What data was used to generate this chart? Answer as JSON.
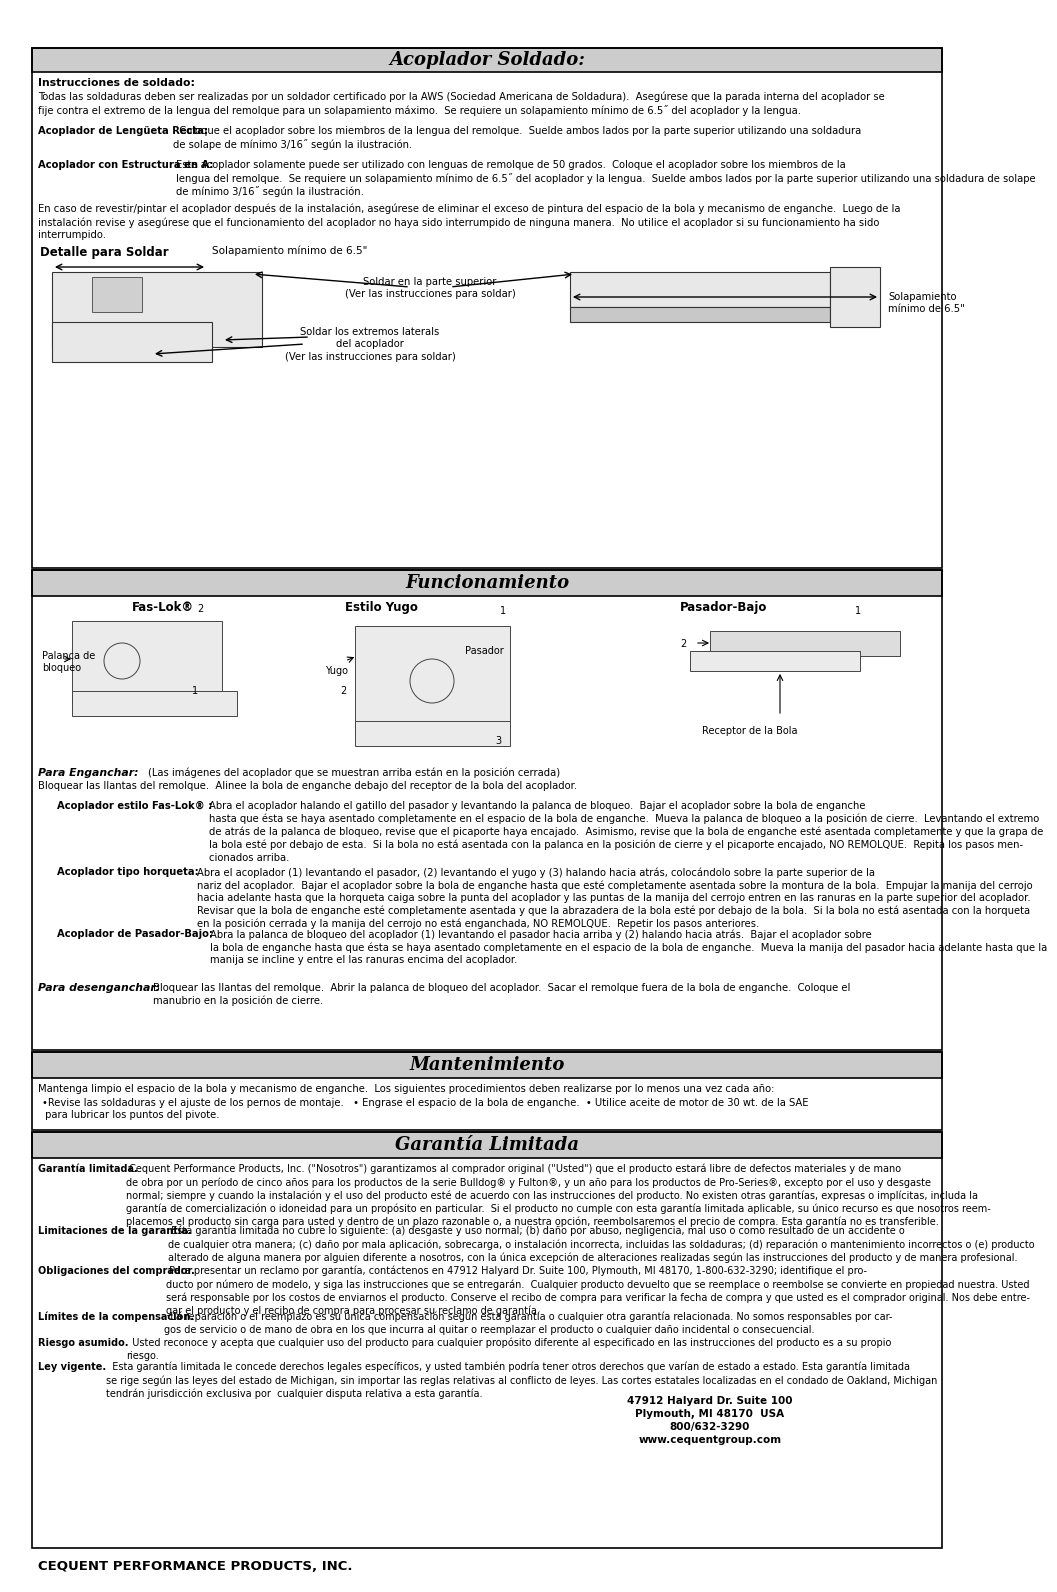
{
  "bg_color": "#ffffff",
  "header_bg": "#cccccc",
  "title1": "Acoplador Soldado:",
  "title2": "Funcionamiento",
  "title3": "Mantenimiento",
  "title4": "Garantía Limitada",
  "s1_instr_title": "Instrucciones de soldado:",
  "s1_p1": "Todas las soldaduras deben ser realizadas por un soldador certificado por la AWS (Sociedad Americana de Soldadura).  Asegúrese que la parada interna del acoplador se\nfije contra el extremo de la lengua del remolque para un solapamiento máximo.  Se requiere un solapamiento mínimo de 6.5˝ del acoplador y la lengua.",
  "s1_p2a": "Acoplador de Lengüeta Recta:",
  "s1_p2b": "  Coloque el acoplador sobre los miembros de la lengua del remolque.  Suelde ambos lados por la parte superior utilizando una soldadura\nde solape de mínimo 3/16˝ según la ilustración.",
  "s1_p3a": "Acoplador con Estructura en A:",
  "s1_p3b": "Este acoplador solamente puede ser utilizado con lenguas de remolque de 50 grados.  Coloque el acoplador sobre los miembros de la\nlengua del remolque.  Se requiere un solapamiento mínimo de 6.5˝ del acoplador y la lengua.  Suelde ambos lados por la parte superior utilizando una soldadura de solape\nde mínimo 3/16˝ según la ilustración.",
  "s1_p4": "En caso de revestir/pintar el acoplador después de la instalación, asegúrese de eliminar el exceso de pintura del espacio de la bola y mecanismo de enganche.  Luego de la\ninstalación revise y asegúrese que el funcionamiento del acoplador no haya sido interrumpido de ninguna manera.  No utilice el acoplador si su funcionamiento ha sido\ninterrumpido.",
  "s1_detalle": "Detalle para Soldar",
  "s1_solap_top": "Solapamiento mínimo de 6.5\"",
  "s1_solap_right": "Solapamiento\nmínimo de 6.5\"",
  "s1_weld_top": "Soldar en la parte superior\n(Ver las instrucciones para soldar)",
  "s1_weld_lat": "Soldar los extremos laterals\ndel acoplador\n(Ver las instrucciones para soldar)",
  "s2_faslok": "Fas-Lok®",
  "s2_faslok_sub": "Palanca de\nbloqueo",
  "s2_yugo": "Estilo Yugo",
  "s2_yugo_sub": "Yugo",
  "s2_pasador_title": "Pasador-Bajo",
  "s2_pasador_sub": "Pasador",
  "s2_receptor": "Receptor de la Bola",
  "s2_enganchar_title": "Para Enganchar:",
  "s2_enganchar_p1": "(Las imágenes del acoplador que se muestran arriba están en la posición cerrada)",
  "s2_enganchar_p2": "Bloquear las llantas del remolque.  Alinee la bola de enganche debajo del receptor de la bola del acoplador.",
  "s2_faslok_title": "Acoplador estilo Fas-Lok® :",
  "s2_faslok_p": "Abra el acoplador halando el gatillo del pasador y levantando la palanca de bloqueo.  Bajar el acoplador sobre la bola de enganche\nhasta que ésta se haya asentado completamente en el espacio de la bola de enganche.  Mueva la palanca de bloqueo a la posición de cierre.  Levantando el extremo\nde atrás de la palanca de bloqueo, revise que el picaporte haya encajado.  Asimismo, revise que la bola de enganche esté asentada completamente y que la grapa de\nla bola esté por debajo de esta.  Si la bola no está asentada con la palanca en la posición de cierre y el picaporte encajado, NO REMOLQUE.  Repita los pasos men-\ncionados arriba.",
  "s2_horqueta_title": "Acoplador tipo horqueta:",
  "s2_horqueta_p": "Abra el acoplador (1) levantando el pasador, (2) levantando el yugo y (3) halando hacia atrás, colocándolo sobre la parte superior de la\nnariz del acoplador.  Bajar el acoplador sobre la bola de enganche hasta que esté completamente asentada sobre la montura de la bola.  Empujar la manija del cerrojo\nhacia adelante hasta que la horqueta caiga sobre la punta del acoplador y las puntas de la manija del cerrojo entren en las ranuras en la parte superior del acoplador.\nRevisar que la bola de enganche esté completamente asentada y que la abrazadera de la bola esté por debajo de la bola.  Si la bola no está asentada con la horqueta\nen la posición cerrada y la manija del cerrojo no está enganchada, NO REMOLQUE.  Repetir los pasos anteriores.",
  "s2_pasador_title2": "Acoplador de Pasador-Bajo:",
  "s2_pasador_p": "Abra la palanca de bloqueo del acoplador (1) levantando el pasador hacia arriba y (2) halando hacia atrás.  Bajar el acoplador sobre\nla bola de enganche hasta que ésta se haya asentado completamente en el espacio de la bola de enganche.  Mueva la manija del pasador hacia adelante hasta que la\nmanija se incline y entre el las ranuras encima del acoplador.",
  "s2_desenganchar_title": "Para desenganchar:",
  "s2_desenganchar_p": "Bloquear las llantas del remolque.  Abrir la palanca de bloqueo del acoplador.  Sacar el remolque fuera de la bola de enganche.  Coloque el\nmanubrio en la posición de cierre.",
  "s3_p1": "Mantenga limpio el espacio de la bola y mecanismo de enganche.  Los siguientes procedimientos deben realizarse por lo menos una vez cada año:",
  "s3_bullets": "•Revise las soldaduras y el ajuste de los pernos de montaje.   • Engrase el espacio de la bola de enganche.  • Utilice aceite de motor de 30 wt. de la SAE\n para lubricar los puntos del pivote.",
  "g1_title": "Garantía limitada.",
  "g1_p": " Cequent Performance Products, Inc. (\"Nosotros\") garantizamos al comprador original (\"Usted\") que el producto estará libre de defectos materiales y de mano\nde obra por un período de cinco años para los productos de la serie Bulldog® y Fulton®, y un año para los productos de Pro-Series®, excepto por el uso y desgaste\nnormal; siempre y cuando la instalación y el uso del producto esté de acuerdo con las instrucciones del producto. No existen otras garantías, expresas o implícitas, includa la\ngarantía de comercialización o idoneidad para un propósito en particular.  Si el producto no cumple con esta garantía limitada aplicable, su único recurso es que nosotros reem-\nplacemos el producto sin carga para usted y dentro de un plazo razonable o, a nuestra opción, reembolsaremos el precio de compra. Esta garantía no es transferible.",
  "g2_title": "Limitaciones de la garantía.",
  "g2_p": " Esta garantía limitada no cubre lo siguiente: (a) desgaste y uso normal; (b) daño por abuso, negligencia, mal uso o como resultado de un accidente o\nde cualquier otra manera; (c) daño por mala aplicación, sobrecarga, o instalación incorrecta, incluidas las soldaduras; (d) reparación o mantenimiento incorrectos o (e) producto\nalterado de alguna manera por alguien diferente a nosotros, con la única excepción de alteraciones realizadas según las instrucciones del producto y de manera profesional.",
  "g3_title": "Obligaciones del comprador.",
  "g3_p": " Para presentar un reclamo por garantía, contáctenos en 47912 Halyard Dr. Suite 100, Plymouth, MI 48170, 1-800-632-3290; identifique el pro-\nducto por número de modelo, y siga las instrucciones que se entregarán.  Cualquier producto devuelto que se reemplace o reembolse se convierte en propiedad nuestra. Usted\nserá responsable por los costos de enviarnos el producto. Conserve el recibo de compra para verificar la fecha de compra y que usted es el comprador original. Nos debe entre-\ngar el producto y el recibo de compra para procesar su reclamo de garantía.",
  "g4_title": "Límites de la compensación.",
  "g4_p": "  La reparación o el reemplazo es su única compensación según esta garantía o cualquier otra garantía relacionada. No somos responsables por car-\ngos de servicio o de mano de obra en los que incurra al quitar o reemplazar el producto o cualquier daño incidental o consecuencial.",
  "g5_title": "Riesgo asumido.",
  "g5_p": "  Usted reconoce y acepta que cualquier uso del producto para cualquier propósito diferente al especificado en las instrucciones del producto es a su propio\nriesgo.",
  "g6_title": "Ley vigente.",
  "g6_p": "  Esta garantía limitada le concede derechos legales específicos, y usted también podría tener otros derechos que varían de estado a estado. Esta garantía limitada\nse rige según las leyes del estado de Michigan, sin importar las reglas relativas al conflicto de leyes. Las cortes estatales localizadas en el condado de Oakland, Michigan\ntendrán jurisdicción exclusiva por  cualquier disputa relativa a esta garantía.",
  "footer_left": "CEQUENT PERFORMANCE PRODUCTS, INC.",
  "footer_addr1": "47912 Halyard Dr. Suite 100",
  "footer_addr2": "Plymouth, MI 48170  USA",
  "footer_addr3": "800/632-3290",
  "footer_addr4": "www.cequentgroup.com"
}
